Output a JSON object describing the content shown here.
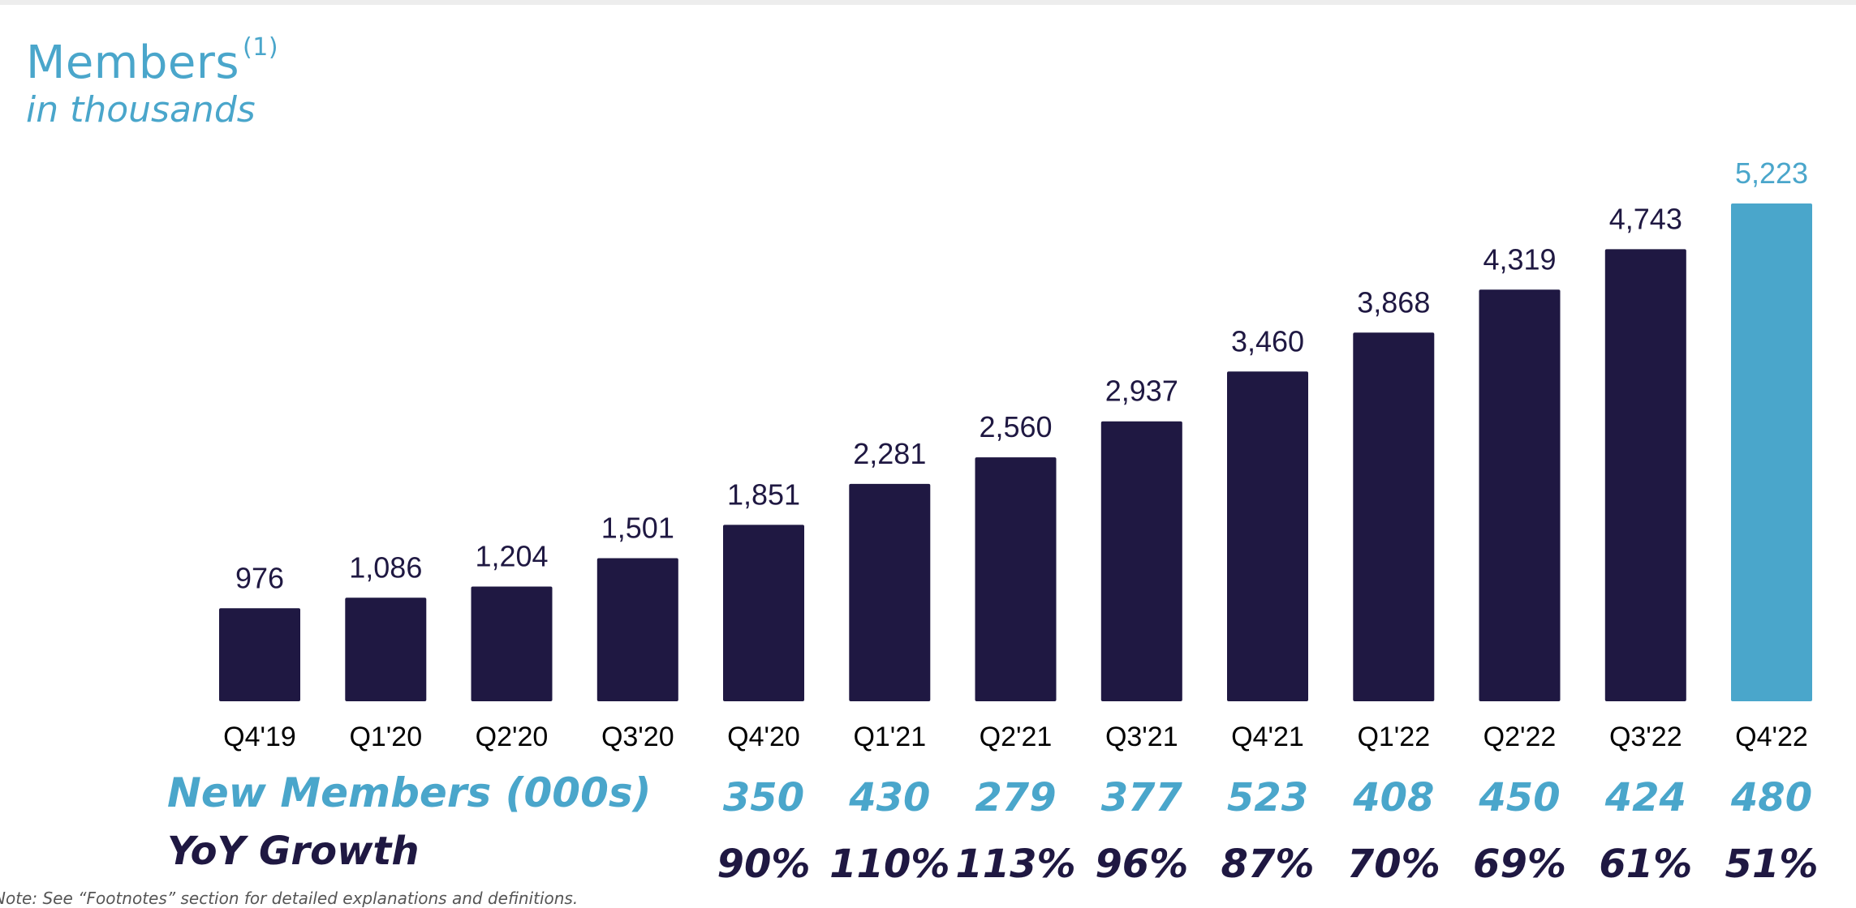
{
  "title": {
    "main": "Members",
    "superscript": "(1)",
    "subtitle": "in thousands"
  },
  "colors": {
    "bar": "#1f1842",
    "highlight": "#4aa6cb"
  },
  "chart_data": {
    "type": "bar",
    "title": "Members",
    "subtitle": "in thousands",
    "categories": [
      "Q4'19",
      "Q1'20",
      "Q2'20",
      "Q3'20",
      "Q4'20",
      "Q1'21",
      "Q2'21",
      "Q3'21",
      "Q4'21",
      "Q1'22",
      "Q2'22",
      "Q3'22",
      "Q4'22"
    ],
    "values": [
      976,
      1086,
      1204,
      1501,
      1851,
      2281,
      2560,
      2937,
      3460,
      3868,
      4319,
      4743,
      5223
    ],
    "value_labels": [
      "976",
      "1,086",
      "1,204",
      "1,501",
      "1,851",
      "2,281",
      "2,560",
      "2,937",
      "3,460",
      "3,868",
      "4,319",
      "4,743",
      "5,223"
    ],
    "highlighted_category": "Q4'22",
    "ylim": [
      0,
      5223
    ],
    "grid": false,
    "legend": "none"
  },
  "table_rows": {
    "new_members": {
      "label": "New Members (000s)",
      "categories": [
        "Q4'20",
        "Q1'21",
        "Q2'21",
        "Q3'21",
        "Q4'21",
        "Q1'22",
        "Q2'22",
        "Q3'22",
        "Q4'22"
      ],
      "values": [
        "350",
        "430",
        "279",
        "377",
        "523",
        "408",
        "450",
        "424",
        "480"
      ]
    },
    "yoy_growth": {
      "label": "YoY Growth",
      "categories": [
        "Q4'20",
        "Q1'21",
        "Q2'21",
        "Q3'21",
        "Q4'21",
        "Q1'22",
        "Q2'22",
        "Q3'22",
        "Q4'22"
      ],
      "values": [
        "90%",
        "110%",
        "113%",
        "96%",
        "87%",
        "70%",
        "69%",
        "61%",
        "51%"
      ]
    }
  },
  "footnote": "Note: See “Footnotes” section for detailed explanations and definitions."
}
